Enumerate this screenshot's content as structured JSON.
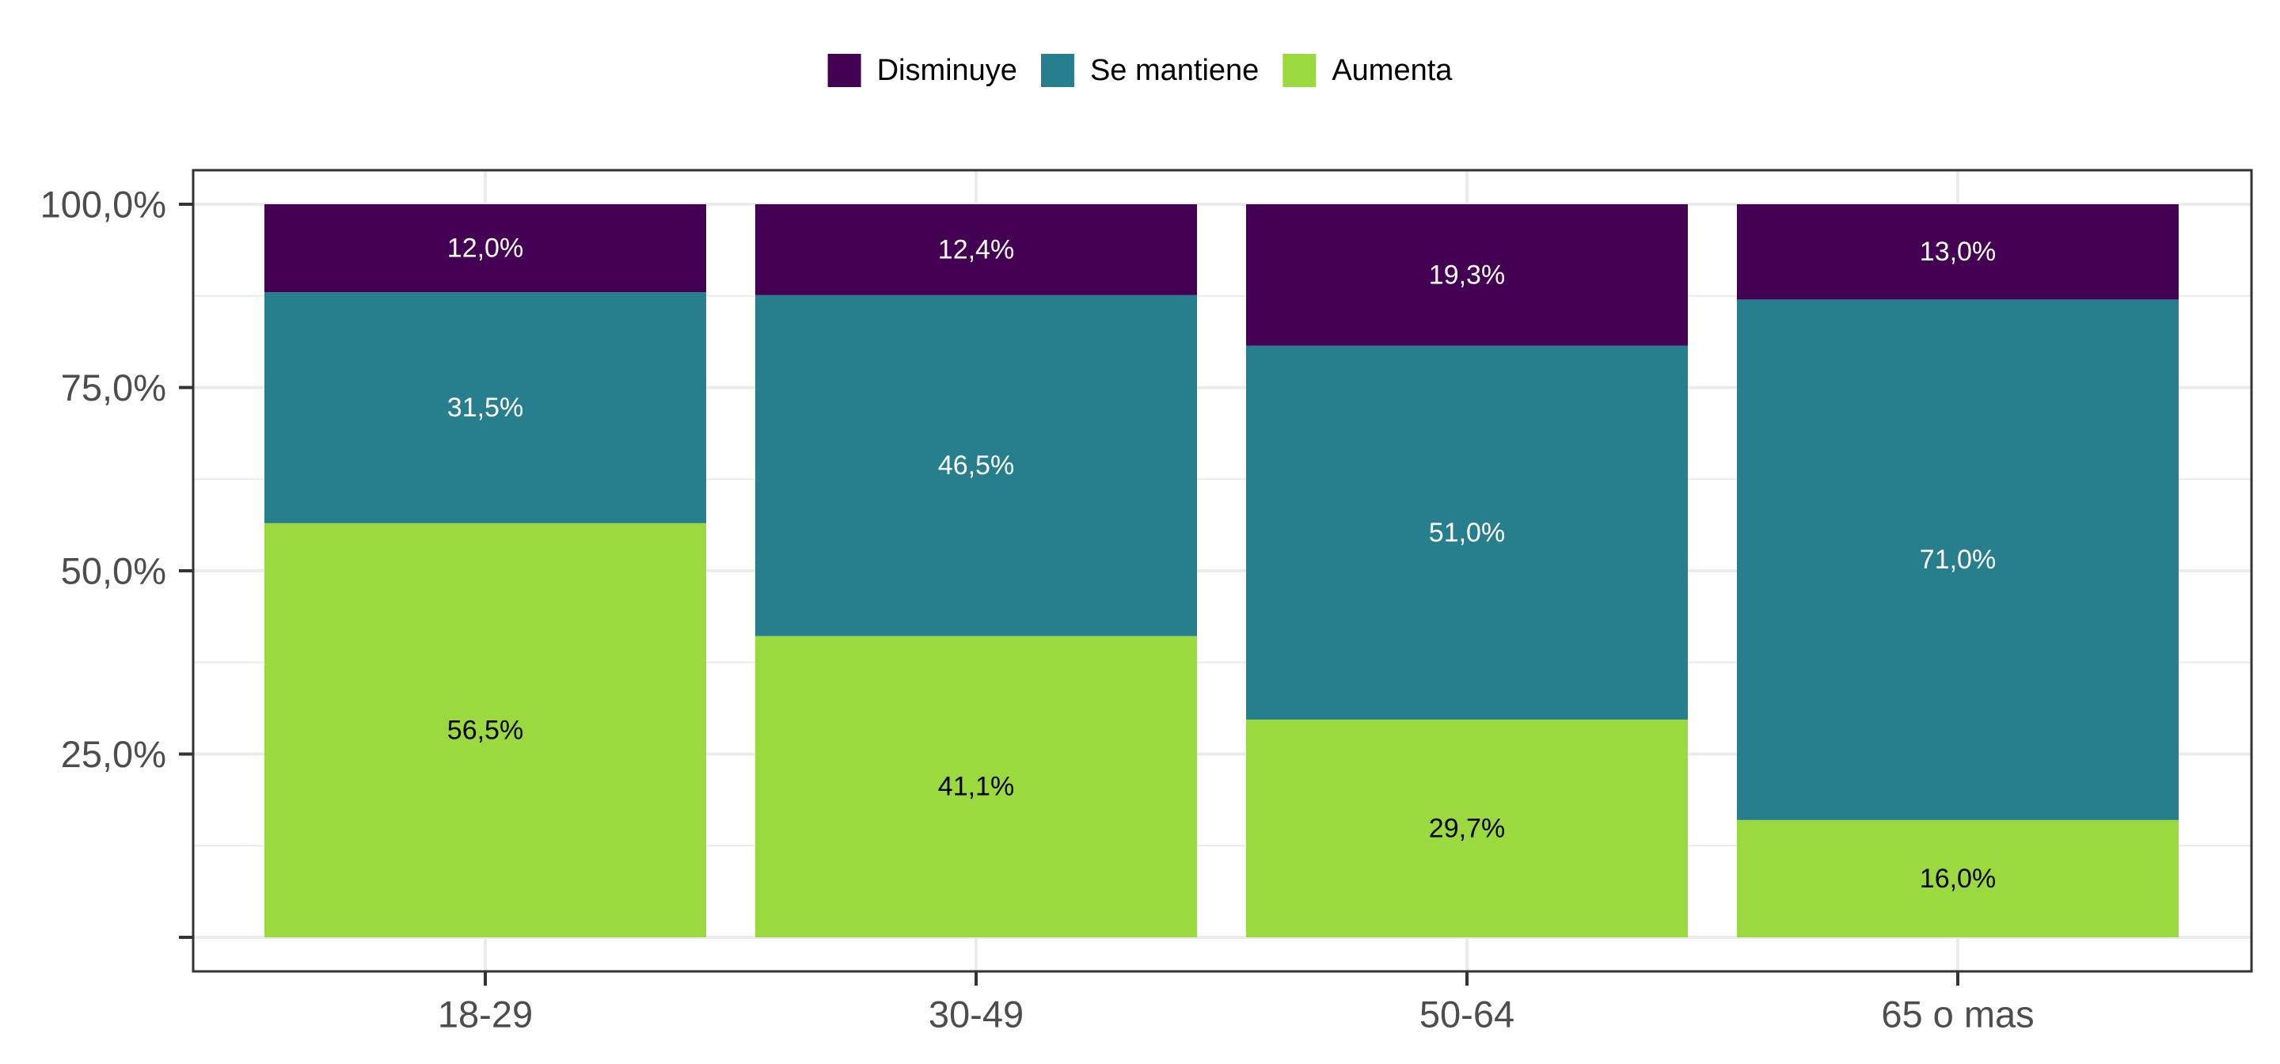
{
  "chart_data": {
    "type": "bar",
    "stacked": true,
    "categories": [
      "18-29",
      "30-49",
      "50-64",
      "65 o mas"
    ],
    "series": [
      {
        "name": "Aumenta",
        "color": "#9ADA3E",
        "label_color": "#000000",
        "values": [
          56.5,
          41.1,
          29.7,
          16.0
        ],
        "labels": [
          "56,5%",
          "41,1%",
          "29,7%",
          "16,0%"
        ]
      },
      {
        "name": "Se mantiene",
        "color": "#277F8E",
        "label_color": "#ffffff",
        "values": [
          31.5,
          46.5,
          51.0,
          71.0
        ],
        "labels": [
          "31,5%",
          "46,5%",
          "51,0%",
          "71,0%"
        ]
      },
      {
        "name": "Disminuye",
        "color": "#440154",
        "label_color": "#ffffff",
        "values": [
          12.0,
          12.4,
          19.3,
          13.0
        ],
        "labels": [
          "12,0%",
          "12,4%",
          "19,3%",
          "13,0%"
        ]
      }
    ],
    "legend_order": [
      "Disminuye",
      "Se mantiene",
      "Aumenta"
    ],
    "legend_position": "top",
    "y_ticks": [
      {
        "value": 25,
        "label": "25,0%"
      },
      {
        "value": 50,
        "label": "50,0%"
      },
      {
        "value": 75,
        "label": "75,0%"
      },
      {
        "value": 100,
        "label": "100,0%"
      }
    ],
    "ylim": [
      0,
      100
    ],
    "grid": true,
    "title": "",
    "xlabel": "",
    "ylabel": ""
  }
}
